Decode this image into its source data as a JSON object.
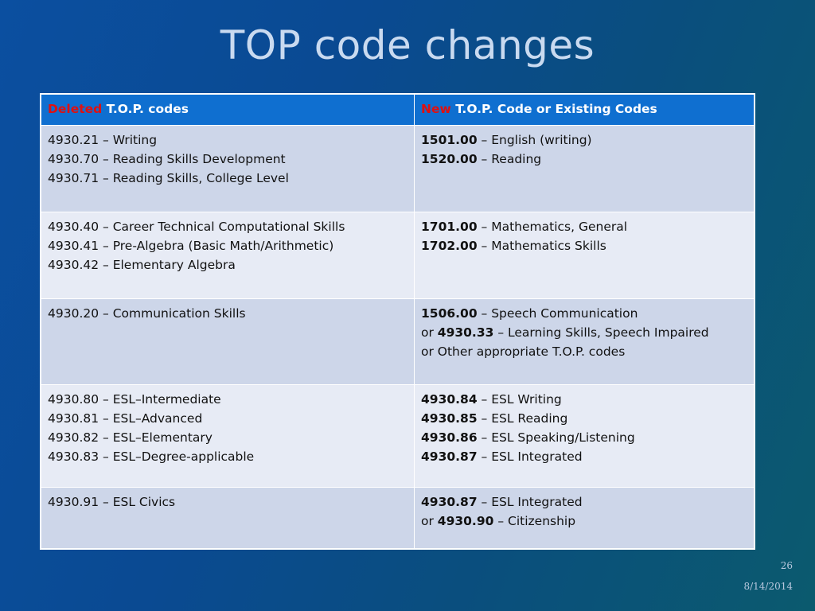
{
  "slide": {
    "title": "TOP code changes",
    "page_number": "26",
    "date": "8/14/2014"
  },
  "table": {
    "header": {
      "left_prefix": "Deleted",
      "left_rest": " T.O.P. codes",
      "right_prefix": "New",
      "right_rest": " T.O.P. Code or Existing Codes"
    },
    "rows": [
      {
        "left": [
          "4930.21 – Writing",
          "4930.70 – Reading Skills Development",
          "4930.71 – Reading Skills, College Level"
        ],
        "right": [
          {
            "pre": "",
            "code": "1501.00",
            "text": " – English (writing)"
          },
          {
            "pre": "",
            "code": "1520.00",
            "text": " – Reading"
          }
        ]
      },
      {
        "left": [
          "4930.40 – Career Technical Computational Skills",
          "4930.41 – Pre-Algebra (Basic Math/Arithmetic)",
          "4930.42 – Elementary Algebra"
        ],
        "right": [
          {
            "pre": "",
            "code": "1701.00",
            "text": " – Mathematics, General"
          },
          {
            "pre": "",
            "code": "1702.00",
            "text": " – Mathematics Skills"
          }
        ]
      },
      {
        "left": [
          "4930.20 – Communication Skills"
        ],
        "right": [
          {
            "pre": "",
            "code": "1506.00",
            "text": " – Speech Communication"
          },
          {
            "pre": "or ",
            "code": "4930.33",
            "text": " – Learning Skills, Speech Impaired"
          },
          {
            "pre": "or Other appropriate T.O.P. codes",
            "code": "",
            "text": ""
          }
        ]
      },
      {
        "left": [
          "4930.80 – ESL–Intermediate",
          "4930.81 – ESL–Advanced",
          "4930.82 – ESL–Elementary",
          "4930.83 – ESL–Degree-applicable"
        ],
        "right": [
          {
            "pre": "",
            "code": "4930.84",
            "text": " – ESL Writing"
          },
          {
            "pre": "",
            "code": "4930.85",
            "text": " – ESL Reading"
          },
          {
            "pre": "",
            "code": "4930.86",
            "text": " – ESL Speaking/Listening"
          },
          {
            "pre": "",
            "code": "4930.87",
            "text": " – ESL Integrated"
          }
        ]
      },
      {
        "left": [
          "4930.91 – ESL Civics"
        ],
        "right": [
          {
            "pre": "",
            "code": "4930.87",
            "text": " – ESL Integrated"
          },
          {
            "pre": "or ",
            "code": "4930.90",
            "text": " – Citizenship"
          }
        ]
      }
    ]
  }
}
